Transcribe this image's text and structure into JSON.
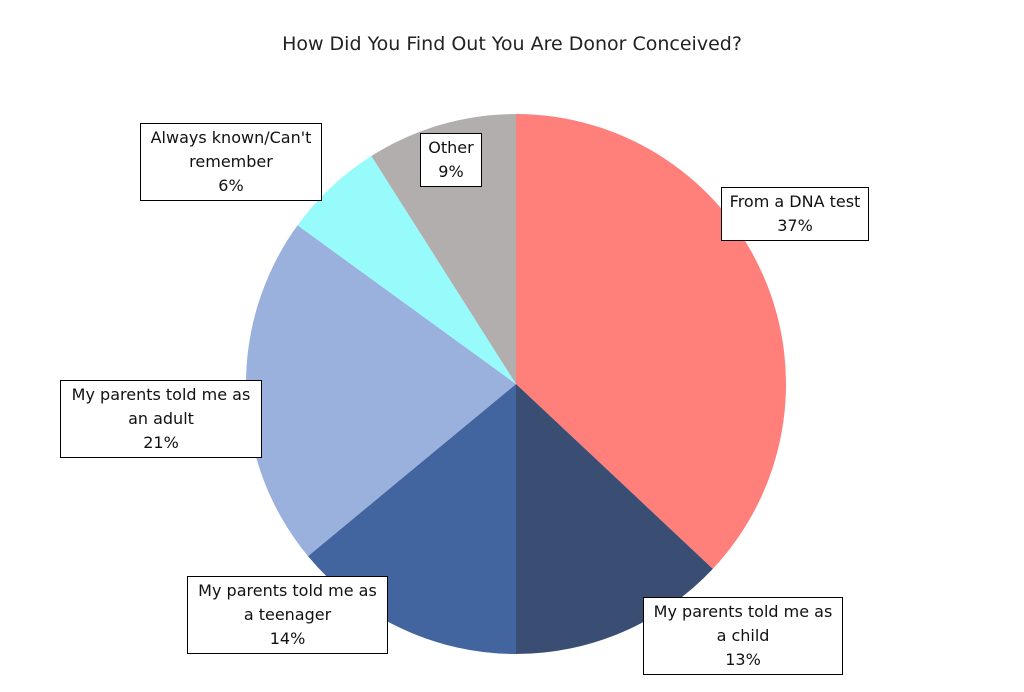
{
  "chart_data": {
    "type": "pie",
    "title": "How Did You Find Out You Are Donor Conceived?",
    "categories": [
      "From a DNA test",
      "My parents told me as a child",
      "My parents told me as a teenager",
      "My parents told me as an adult",
      "Always known/Can't remember",
      "Other"
    ],
    "values": [
      37,
      13,
      14,
      21,
      6,
      9
    ],
    "value_labels": [
      "37%",
      "13%",
      "14%",
      "21%",
      "6%",
      "9%"
    ],
    "colors": [
      "#ff7f7b",
      "#3a4d73",
      "#42659f",
      "#9ab1de",
      "#98fbfb",
      "#b3aeae"
    ]
  }
}
